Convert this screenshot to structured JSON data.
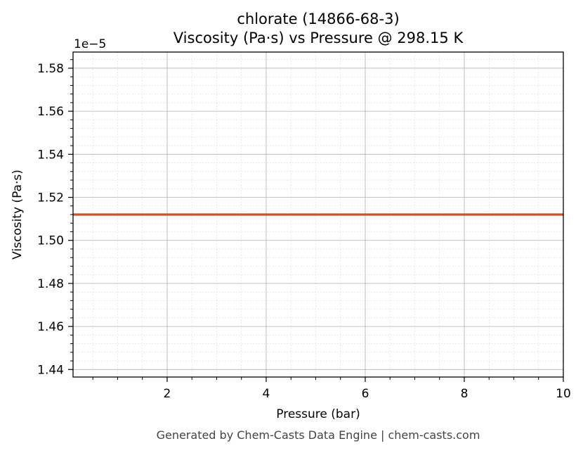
{
  "chart_data": {
    "type": "line",
    "title_line1": "chlorate (14866-68-3)",
    "title_line2": "Viscosity (Pa·s) vs Pressure @ 298.15 K",
    "xlabel": "Pressure (bar)",
    "ylabel": "Viscosity (Pa·s)",
    "y_offset_label": "1e−5",
    "xlim": [
      0.1,
      10
    ],
    "ylim": [
      1.4365,
      1.5875
    ],
    "x_ticks": [
      2,
      4,
      6,
      8,
      10
    ],
    "x_tick_labels": [
      "2",
      "4",
      "6",
      "8",
      "10"
    ],
    "y_ticks": [
      1.44,
      1.46,
      1.48,
      1.5,
      1.52,
      1.54,
      1.56,
      1.58
    ],
    "y_tick_labels": [
      "1.44",
      "1.46",
      "1.48",
      "1.50",
      "1.52",
      "1.54",
      "1.56",
      "1.58"
    ],
    "grid": true,
    "series": [
      {
        "color": "#c8552b",
        "x": [
          0.1,
          10
        ],
        "y": [
          1.512,
          1.512
        ]
      }
    ]
  },
  "footer": "Generated by Chem-Casts Data Engine | chem-casts.com"
}
